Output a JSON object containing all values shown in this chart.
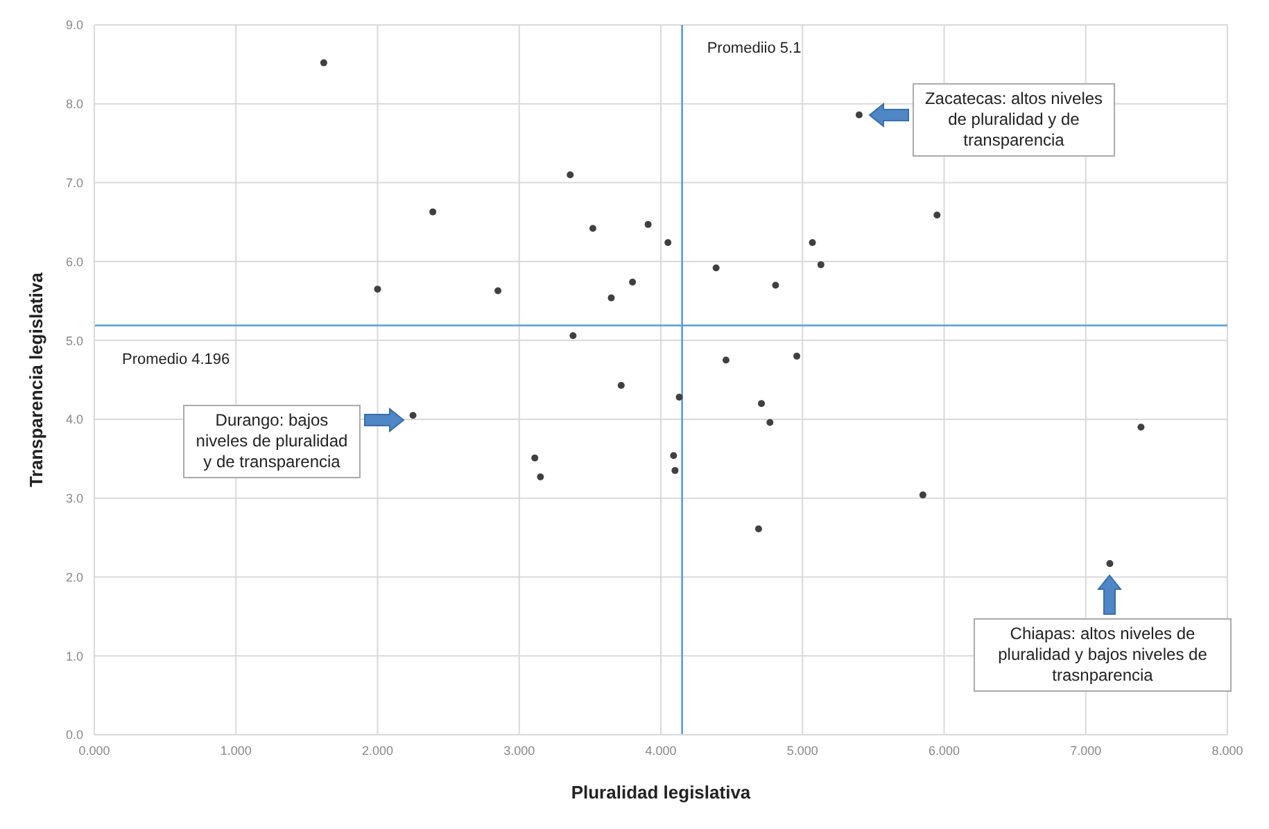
{
  "chart_data": {
    "type": "scatter",
    "xlabel": "Pluralidad legislativa",
    "ylabel": "Transparencia legislativa",
    "x": [
      3.91,
      4.05,
      3.8,
      4.39,
      4.81,
      5.07,
      5.13,
      5.95,
      5.4,
      4.46,
      4.96,
      3.72,
      4.13,
      1.62,
      2.39,
      2.0,
      2.85,
      3.36,
      3.52,
      3.65,
      3.38,
      2.25,
      3.11,
      3.15,
      4.71,
      4.77,
      4.09,
      4.1,
      5.85,
      4.69,
      7.39,
      7.17
    ],
    "series": [
      {
        "color": "#404040",
        "values": [
          6.47,
          6.24,
          5.74,
          5.92,
          5.7,
          6.24,
          5.96,
          6.59,
          7.86,
          4.75,
          4.8,
          4.43,
          4.28,
          8.52,
          6.63,
          5.65,
          5.63,
          7.1,
          6.42,
          5.54,
          5.06,
          4.05,
          3.51,
          3.27,
          4.2,
          3.96,
          3.54,
          3.35,
          3.04,
          2.61,
          3.9,
          2.17
        ]
      }
    ],
    "xlim": [
      0,
      8
    ],
    "xticks": [
      {
        "value": 0,
        "label": "0.000"
      },
      {
        "value": 1,
        "label": "1.000"
      },
      {
        "value": 2,
        "label": "2.000"
      },
      {
        "value": 3,
        "label": "3.000"
      },
      {
        "value": 4,
        "label": "4.000"
      },
      {
        "value": 5,
        "label": "5.000"
      },
      {
        "value": 6,
        "label": "6.000"
      },
      {
        "value": 7,
        "label": "7.000"
      },
      {
        "value": 8,
        "label": "8.000"
      }
    ],
    "ylim": [
      0,
      9
    ],
    "yticks": [
      {
        "value": 0,
        "label": "0.0"
      },
      {
        "value": 1,
        "label": "1.0"
      },
      {
        "value": 2,
        "label": "2.0"
      },
      {
        "value": 3,
        "label": "3.0"
      },
      {
        "value": 4,
        "label": "4.0"
      },
      {
        "value": 5,
        "label": "5.0"
      },
      {
        "value": 6,
        "label": "6.0"
      },
      {
        "value": 7,
        "label": "7.0"
      },
      {
        "value": 8,
        "label": "8.0"
      },
      {
        "value": 9,
        "label": "9.0"
      }
    ],
    "grid": true,
    "marker": "circle",
    "ref_lines": [
      {
        "axis": "x",
        "value": 4.15,
        "label": "Promediio 5.1",
        "color": "#5b9bd5"
      },
      {
        "axis": "y",
        "value": 5.19,
        "label": "Promedio 4.196",
        "color": "#5b9bd5"
      }
    ],
    "annotations": [
      "Zacatecas: altos niveles de pluralidad y de transparencia",
      "Durango: bajos niveles de pluralidad y de transparencia",
      "Chiapas: altos niveles de pluralidad y bajos niveles de trasnparencia"
    ]
  }
}
